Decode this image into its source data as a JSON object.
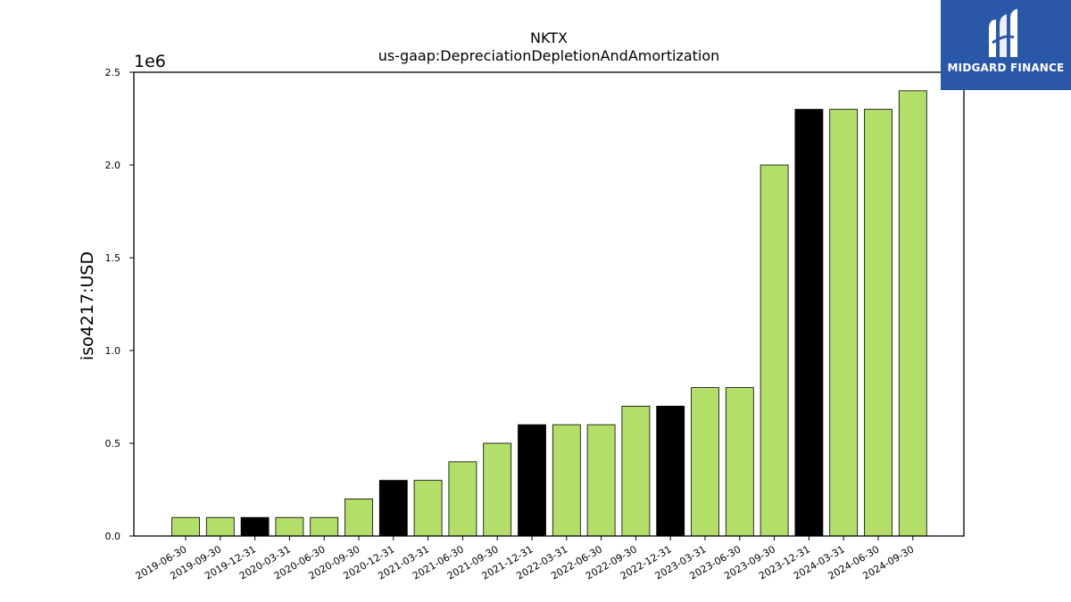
{
  "chart_data": {
    "type": "bar",
    "title": "NKTX",
    "subtitle": "us-gaap:DepreciationDepletionAndAmortization",
    "xlabel": "",
    "ylabel": "iso4217:USD",
    "y_scale_label": "1e6",
    "ylim": [
      0,
      2500000
    ],
    "y_ticks": [
      0,
      500000,
      1000000,
      1500000,
      2000000,
      2500000
    ],
    "y_tick_labels": [
      "0.0",
      "0.5",
      "1.0",
      "1.5",
      "2.0",
      "2.5"
    ],
    "grid": false,
    "categories": [
      "2019-06-30",
      "2019-09-30",
      "2019-12-31",
      "2020-03-31",
      "2020-06-30",
      "2020-09-30",
      "2020-12-31",
      "2021-03-31",
      "2021-06-30",
      "2021-09-30",
      "2021-12-31",
      "2022-03-31",
      "2022-06-30",
      "2022-09-30",
      "2022-12-31",
      "2023-03-31",
      "2023-06-30",
      "2023-09-30",
      "2023-12-31",
      "2024-03-31",
      "2024-06-30",
      "2024-09-30"
    ],
    "values": [
      100000,
      100000,
      100000,
      100000,
      100000,
      200000,
      300000,
      300000,
      400000,
      500000,
      600000,
      600000,
      600000,
      700000,
      700000,
      800000,
      800000,
      2000000,
      2300000,
      2300000,
      2300000,
      2400000
    ],
    "bar_colors": [
      "#b3de69",
      "#b3de69",
      "#000000",
      "#b3de69",
      "#b3de69",
      "#b3de69",
      "#000000",
      "#b3de69",
      "#b3de69",
      "#b3de69",
      "#000000",
      "#b3de69",
      "#b3de69",
      "#b3de69",
      "#000000",
      "#b3de69",
      "#b3de69",
      "#b3de69",
      "#000000",
      "#b3de69",
      "#b3de69",
      "#b3de69"
    ]
  },
  "logo": {
    "text": "MIDGARD FINANCE",
    "background": "#2b57a8"
  }
}
